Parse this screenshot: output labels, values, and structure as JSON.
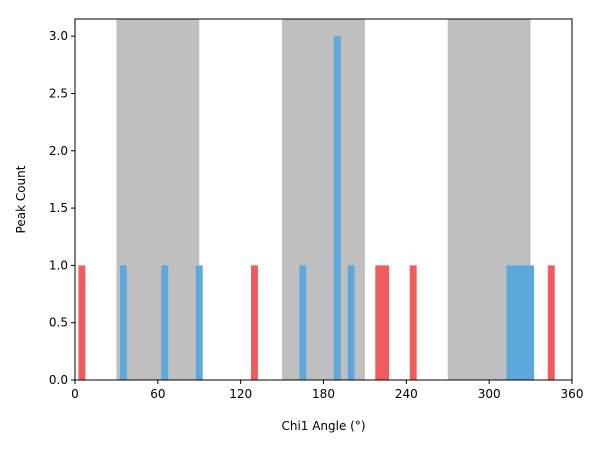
{
  "chart_data": {
    "type": "bar",
    "title": "",
    "xlabel": "Chi1 Angle (°)",
    "ylabel": "Peak Count",
    "xlim": [
      0,
      360
    ],
    "ylim": [
      0,
      3.15
    ],
    "xticks": [
      0,
      60,
      120,
      180,
      240,
      300,
      360
    ],
    "xtick_labels": [
      "0",
      "60",
      "120",
      "180",
      "240",
      "300",
      "360"
    ],
    "yticks": [
      0.0,
      0.5,
      1.0,
      1.5,
      2.0,
      2.5,
      3.0
    ],
    "ytick_labels": [
      "0.0",
      "0.5",
      "1.0",
      "1.5",
      "2.0",
      "2.5",
      "3.0"
    ],
    "grid": false,
    "bin_width": 5,
    "shaded_regions": [
      {
        "x_start": 30,
        "x_end": 90,
        "color": "#bfbfbf"
      },
      {
        "x_start": 150,
        "x_end": 210,
        "color": "#bfbfbf"
      },
      {
        "x_start": 270,
        "x_end": 330,
        "color": "#bfbfbf"
      }
    ],
    "series": [
      {
        "color": "#f25b5b",
        "bins": [
          {
            "x_start": 2.5,
            "x_end": 7.5,
            "count": 1
          },
          {
            "x_start": 127.5,
            "x_end": 132.5,
            "count": 1
          },
          {
            "x_start": 217.5,
            "x_end": 227.5,
            "count": 1
          },
          {
            "x_start": 242.5,
            "x_end": 247.5,
            "count": 1
          },
          {
            "x_start": 342.5,
            "x_end": 347.5,
            "count": 1
          }
        ]
      },
      {
        "color": "#5da8dc",
        "bins": [
          {
            "x_start": 32.5,
            "x_end": 37.5,
            "count": 1
          },
          {
            "x_start": 62.5,
            "x_end": 67.5,
            "count": 1
          },
          {
            "x_start": 87.5,
            "x_end": 92.5,
            "count": 1
          },
          {
            "x_start": 162.5,
            "x_end": 167.5,
            "count": 1
          },
          {
            "x_start": 187.5,
            "x_end": 192.5,
            "count": 3
          },
          {
            "x_start": 197.5,
            "x_end": 202.5,
            "count": 1
          },
          {
            "x_start": 312.5,
            "x_end": 332.5,
            "count": 1
          }
        ]
      }
    ]
  }
}
